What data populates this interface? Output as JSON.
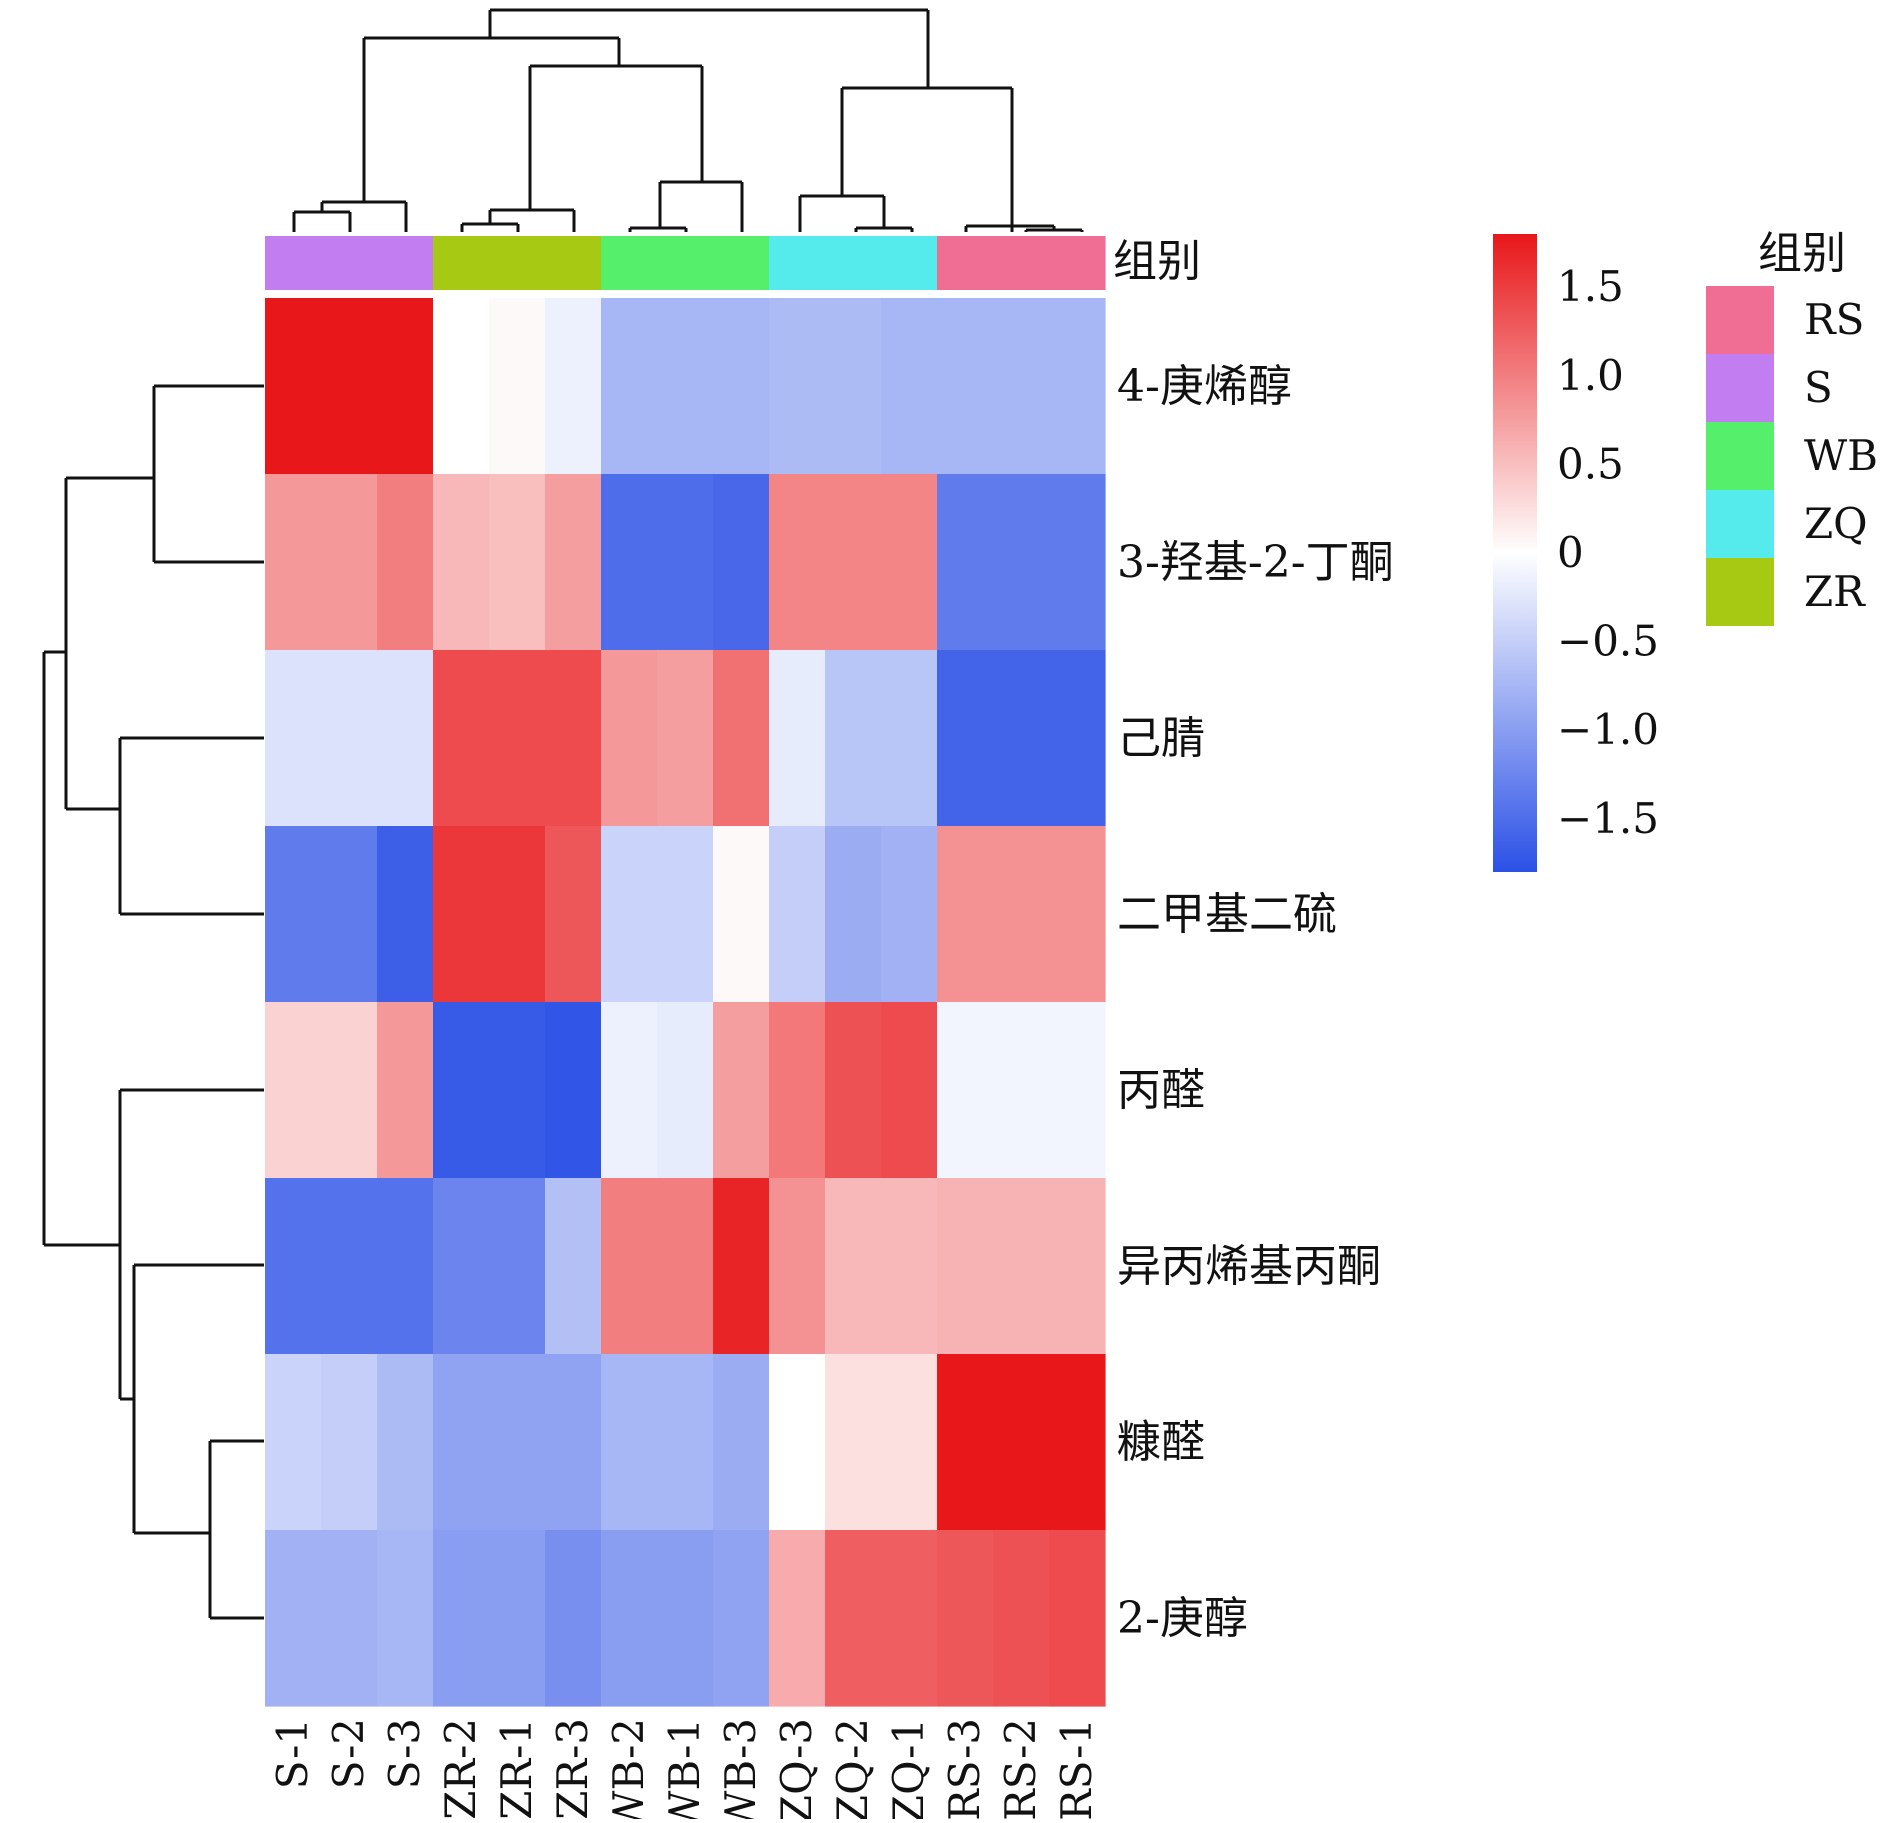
{
  "chart_data": {
    "type": "heatmap",
    "title": "",
    "columns": [
      "S-1",
      "S-2",
      "S-3",
      "ZR-2",
      "ZR-1",
      "ZR-3",
      "WB-2",
      "WB-1",
      "WB-3",
      "ZQ-3",
      "ZQ-2",
      "ZQ-1",
      "RS-3",
      "RS-2",
      "RS-1"
    ],
    "column_groups": [
      "S",
      "S",
      "S",
      "ZR",
      "ZR",
      "ZR",
      "WB",
      "WB",
      "WB",
      "ZQ",
      "ZQ",
      "ZQ",
      "RS",
      "RS",
      "RS"
    ],
    "rows": [
      "4-庚烯醇",
      "3-羟基-2-丁酮",
      "己腈",
      "二甲基二硫",
      "丙醛",
      "异丙烯基丙酮",
      "糠醛",
      "2-庚醇"
    ],
    "values": [
      [
        1.8,
        1.8,
        1.85,
        0.0,
        0.05,
        -0.15,
        -0.75,
        -0.75,
        -0.75,
        -0.7,
        -0.7,
        -0.75,
        -0.75,
        -0.75,
        -0.75
      ],
      [
        0.8,
        0.8,
        1.0,
        0.55,
        0.5,
        0.75,
        -1.5,
        -1.5,
        -1.55,
        0.95,
        0.95,
        0.95,
        -1.35,
        -1.35,
        -1.35
      ],
      [
        -0.3,
        -0.3,
        -0.3,
        1.4,
        1.4,
        1.4,
        0.8,
        0.75,
        1.1,
        -0.2,
        -0.6,
        -0.6,
        -1.6,
        -1.6,
        -1.6
      ],
      [
        -1.35,
        -1.35,
        -1.65,
        1.55,
        1.55,
        1.3,
        -0.45,
        -0.45,
        0.05,
        -0.5,
        -0.85,
        -0.8,
        0.85,
        0.85,
        0.85
      ],
      [
        0.35,
        0.35,
        0.8,
        -1.7,
        -1.7,
        -1.75,
        -0.15,
        -0.2,
        0.75,
        1.05,
        1.35,
        1.4,
        -0.1,
        -0.1,
        -0.1
      ],
      [
        -1.45,
        -1.45,
        -1.45,
        -1.25,
        -1.25,
        -0.65,
        1.0,
        1.0,
        1.7,
        0.85,
        0.55,
        0.55,
        0.6,
        0.6,
        0.6
      ],
      [
        -0.45,
        -0.5,
        -0.7,
        -0.95,
        -0.95,
        -0.95,
        -0.75,
        -0.75,
        -0.85,
        0.0,
        0.25,
        0.25,
        1.85,
        1.85,
        1.85
      ],
      [
        -0.8,
        -0.8,
        -0.75,
        -1.0,
        -1.0,
        -1.15,
        -1.0,
        -1.0,
        -0.95,
        0.65,
        1.25,
        1.25,
        1.3,
        1.35,
        1.4
      ]
    ],
    "color_scale": {
      "min": -1.8,
      "max": 1.8,
      "low_color": "#2b50e6",
      "mid_color": "#ffffff",
      "high_color": "#e8171a",
      "ticks": [
        -1.5,
        -1.0,
        -0.5,
        0,
        0.5,
        1.0,
        1.5
      ],
      "tick_labels": [
        "−1.5",
        "−1.0",
        "−0.5",
        "0",
        "0.5",
        "1.0",
        "1.5"
      ]
    },
    "annotation_label": "组别",
    "legend": {
      "title": "组别",
      "position": "right",
      "entries": [
        {
          "label": "RS",
          "color": "#f06e93"
        },
        {
          "label": "S",
          "color": "#c27df0"
        },
        {
          "label": "WB",
          "color": "#55ef6b"
        },
        {
          "label": "ZQ",
          "color": "#55ebec"
        },
        {
          "label": "ZR",
          "color": "#a7c914"
        }
      ]
    },
    "grid": false
  }
}
